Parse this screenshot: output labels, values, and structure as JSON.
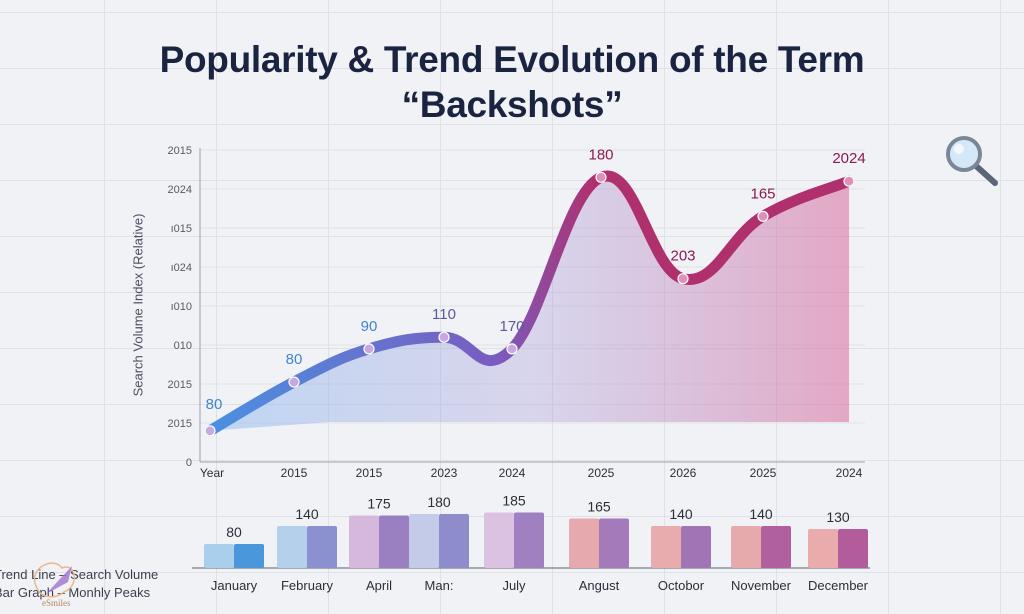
{
  "title_line1": "Popularity & Trend Evolution of the Term",
  "title_line2": "“Backshots”",
  "chart_data": [
    {
      "type": "area",
      "ylabel": "Search Volume Index (Relative)",
      "y_tick_labels": [
        "0",
        "2015",
        "2015",
        "010",
        "ı010",
        "ı024",
        "ı015",
        "2024",
        "2015"
      ],
      "x_tick_labels": [
        "Year",
        "2015",
        "2015",
        "2023",
        "2024",
        "2025",
        "2026",
        "2025",
        "2024"
      ],
      "grid": true,
      "point_labels": [
        "80",
        "80",
        "90",
        "110",
        "170",
        "180",
        "203",
        "165",
        "2024"
      ],
      "y_gridline_level": [
        0.8,
        2.05,
        2.9,
        3.2,
        2.9,
        7.3,
        4.7,
        6.3,
        7.2
      ],
      "ylim_gridlines": [
        0,
        8
      ],
      "gradient_colors": [
        "#4a90e0",
        "#7a5cc0",
        "#b0306e"
      ]
    },
    {
      "type": "bar",
      "categories": [
        "January",
        "February",
        "April",
        "Man:",
        "July",
        "Angust",
        "Octobor",
        "November",
        "December"
      ],
      "values": [
        80,
        140,
        175,
        180,
        185,
        165,
        140,
        140,
        130
      ],
      "bar_colors_left": [
        "#a9cfec",
        "#b5d0ea",
        "#d6b8dc",
        "#c3cbe8",
        "#dcc2e2",
        "#e6aaae",
        "#e8abae",
        "#e7aaac",
        "#e9abab"
      ],
      "bar_colors_right": [
        "#4a97dc",
        "#8a90d0",
        "#9a80c0",
        "#8f8ccc",
        "#a080c0",
        "#a57abb",
        "#a074b5",
        "#b0609e",
        "#b25c9c"
      ]
    }
  ],
  "legend": {
    "line1": "Trend Line – Search Volume",
    "line2": "Bar Graph – Monhly Peaks"
  },
  "icons": {
    "magnifier": "search-icon"
  },
  "watermark": "eSmiles"
}
